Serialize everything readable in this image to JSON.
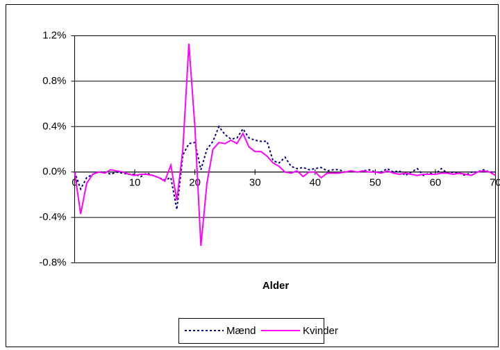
{
  "chart_data": {
    "type": "line",
    "x_label": "Alder",
    "x": [
      0,
      1,
      2,
      3,
      4,
      5,
      6,
      7,
      8,
      9,
      10,
      11,
      12,
      13,
      14,
      15,
      16,
      17,
      18,
      19,
      20,
      21,
      22,
      23,
      24,
      25,
      26,
      27,
      28,
      29,
      30,
      31,
      32,
      33,
      34,
      35,
      36,
      37,
      38,
      39,
      40,
      41,
      42,
      43,
      44,
      45,
      46,
      47,
      48,
      49,
      50,
      51,
      52,
      53,
      54,
      55,
      56,
      57,
      58,
      59,
      60,
      61,
      62,
      63,
      64,
      65,
      66,
      67,
      68,
      69,
      70
    ],
    "series": [
      {
        "name": "Mænd",
        "color": "#000080",
        "line_style": "dashed",
        "values": [
          0.0,
          -0.15,
          -0.05,
          -0.02,
          0.0,
          0.0,
          -0.02,
          0.0,
          -0.01,
          -0.02,
          -0.02,
          -0.04,
          -0.01,
          -0.03,
          -0.05,
          -0.07,
          -0.05,
          -0.33,
          0.15,
          0.25,
          0.26,
          0.02,
          0.2,
          0.27,
          0.4,
          0.33,
          0.29,
          0.3,
          0.38,
          0.3,
          0.28,
          0.27,
          0.27,
          0.1,
          0.08,
          0.13,
          0.05,
          0.03,
          0.04,
          0.02,
          0.03,
          0.04,
          0.01,
          0.02,
          0.02,
          0.0,
          0.01,
          0.0,
          0.01,
          0.02,
          0.0,
          0.0,
          0.03,
          0.0,
          0.01,
          -0.03,
          0.0,
          0.03,
          -0.03,
          -0.01,
          -0.02,
          0.03,
          -0.01,
          0.0,
          -0.01,
          -0.03,
          0.0,
          0.0,
          0.02,
          0.0,
          0.0
        ]
      },
      {
        "name": "Kvinder",
        "color": "#ff00ff",
        "line_style": "solid",
        "values": [
          0.0,
          -0.37,
          -0.1,
          -0.02,
          0.0,
          -0.01,
          0.02,
          0.01,
          0.0,
          -0.02,
          -0.03,
          -0.02,
          -0.02,
          -0.03,
          -0.05,
          -0.08,
          0.06,
          -0.25,
          0.2,
          1.13,
          0.4,
          -0.65,
          -0.1,
          0.2,
          0.26,
          0.25,
          0.28,
          0.25,
          0.34,
          0.22,
          0.18,
          0.18,
          0.14,
          0.08,
          0.05,
          0.0,
          -0.01,
          0.01,
          -0.04,
          0.0,
          0.0,
          -0.05,
          -0.01,
          -0.01,
          -0.01,
          0.0,
          0.01,
          0.0,
          0.01,
          0.0,
          0.0,
          -0.01,
          0.01,
          -0.01,
          -0.02,
          -0.01,
          -0.02,
          -0.03,
          -0.02,
          -0.02,
          -0.02,
          -0.01,
          -0.01,
          -0.02,
          -0.01,
          -0.02,
          -0.03,
          0.0,
          0.01,
          0.0,
          -0.03
        ]
      }
    ],
    "xlim": [
      0,
      70
    ],
    "xticks": [
      0,
      10,
      20,
      30,
      40,
      50,
      60,
      70
    ],
    "ylim": [
      -0.8,
      1.2
    ],
    "yticks": [
      {
        "value": 1.2,
        "label": "1.2%"
      },
      {
        "value": 0.8,
        "label": "0.8%"
      },
      {
        "value": 0.4,
        "label": "0.4%"
      },
      {
        "value": 0.0,
        "label": "0.0%"
      },
      {
        "value": -0.4,
        "label": "-0.4%"
      },
      {
        "value": -0.8,
        "label": "-0.8%"
      }
    ],
    "grid": true,
    "legend": "bottom"
  }
}
